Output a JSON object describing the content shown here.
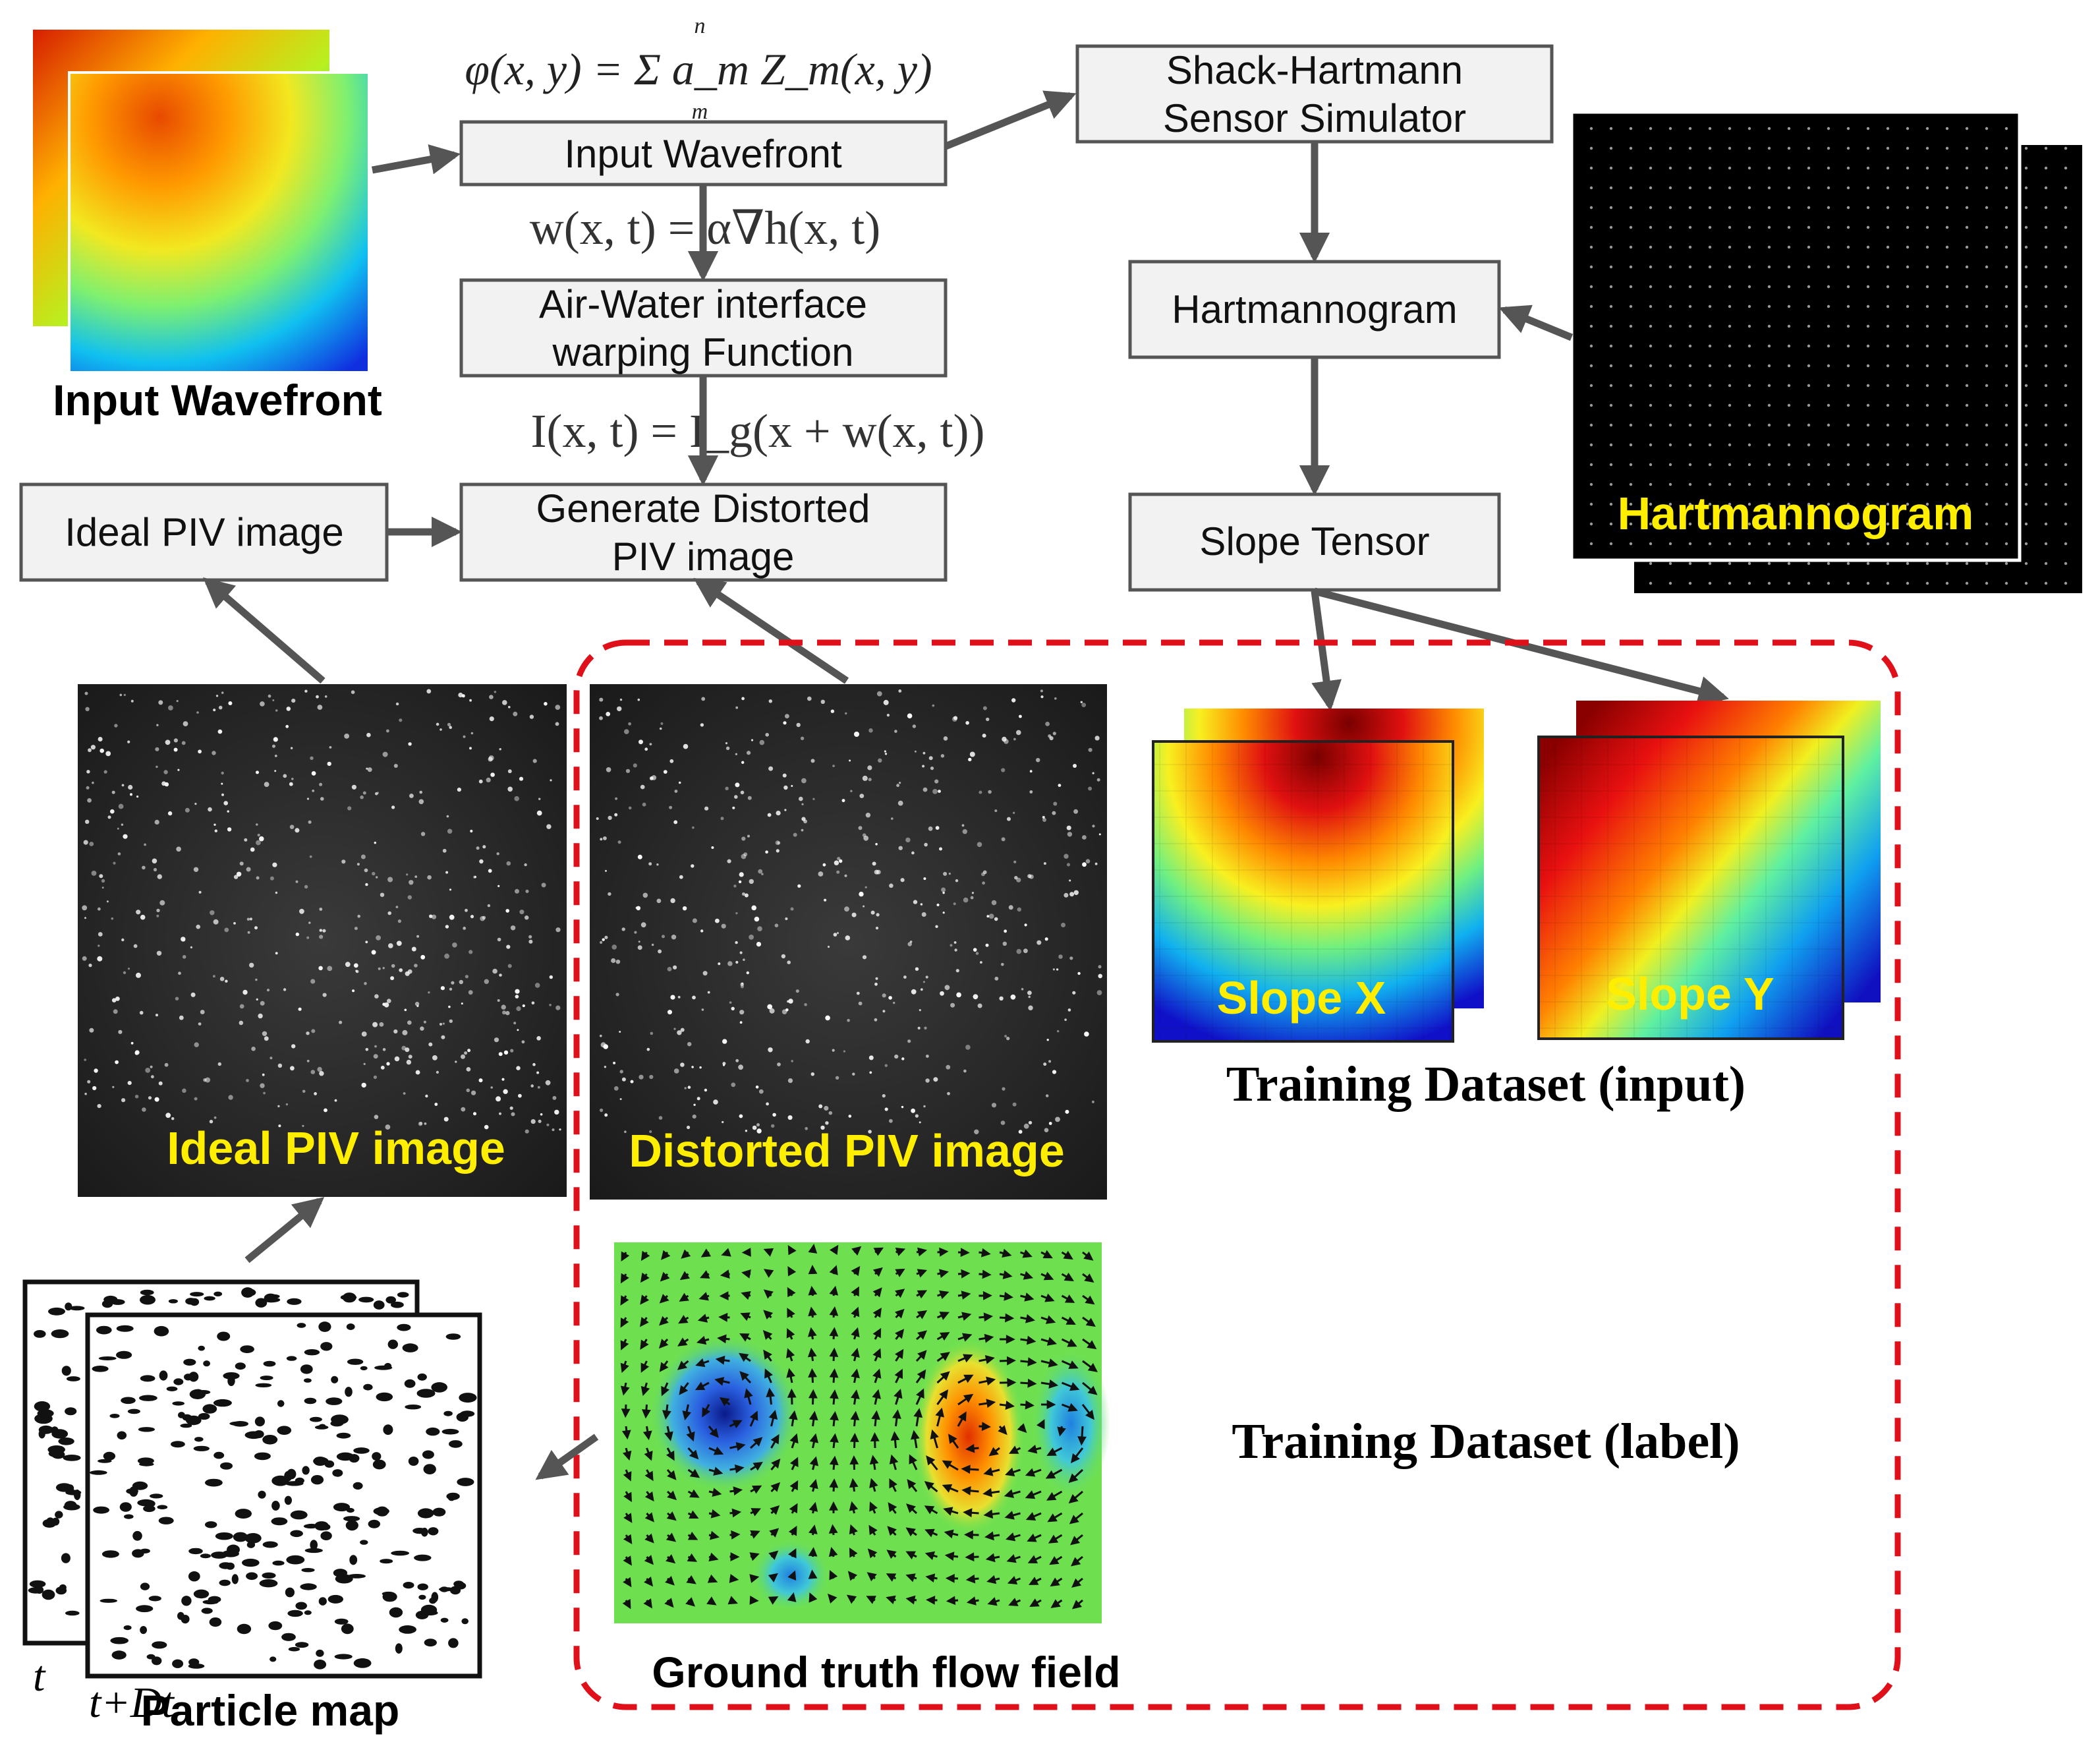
{
  "equations": {
    "zernike": "φ(x, y) = Σ a_m Z_m(x, y)",
    "zernike_sum_top": "n",
    "zernike_sum_bottom": "m",
    "warp": "w(x, t) = α∇h(x, t)",
    "intensity": "I(x, t) = I_g(x + w(x, t))"
  },
  "boxes": {
    "input_wavefront": "Input Wavefront",
    "air_water_line1": "Air-Water interface",
    "air_water_line2": "warping Function",
    "generate_line1": "Generate Distorted",
    "generate_line2": "PIV image",
    "ideal_piv": "Ideal PIV image",
    "shack_line1": "Shack-Hartmann",
    "shack_line2": "Sensor Simulator",
    "hartmannogram": "Hartmannogram",
    "slope_tensor": "Slope Tensor"
  },
  "image_labels": {
    "input_wavefront": "Input Wavefront",
    "hartmannogram": "Hartmannogram",
    "ideal_piv": "Ideal PIV image",
    "distorted_piv": "Distorted PIV image",
    "slope_x": "Slope X",
    "slope_y": "Slope Y",
    "training_input": "Training Dataset (input)",
    "training_label": "Training Dataset (label)",
    "ground_truth": "Ground truth flow field",
    "particle_map": "Particle map",
    "frame_t": "t",
    "frame_t_dt": "t+Dt"
  },
  "colors": {
    "box_fill": "#f2f2f2",
    "box_stroke": "#555555",
    "arrow": "#555555",
    "highlight_text": "#ffee00",
    "dashed_region": "#e0101a",
    "flow_background": "#6ee050"
  },
  "icons": {
    "wavefront_map": "colormap-image",
    "hartmannogram": "dot-grid-image",
    "piv": "particle-image",
    "flow_field": "vector-field-image",
    "particle_map": "particle-sketch"
  }
}
